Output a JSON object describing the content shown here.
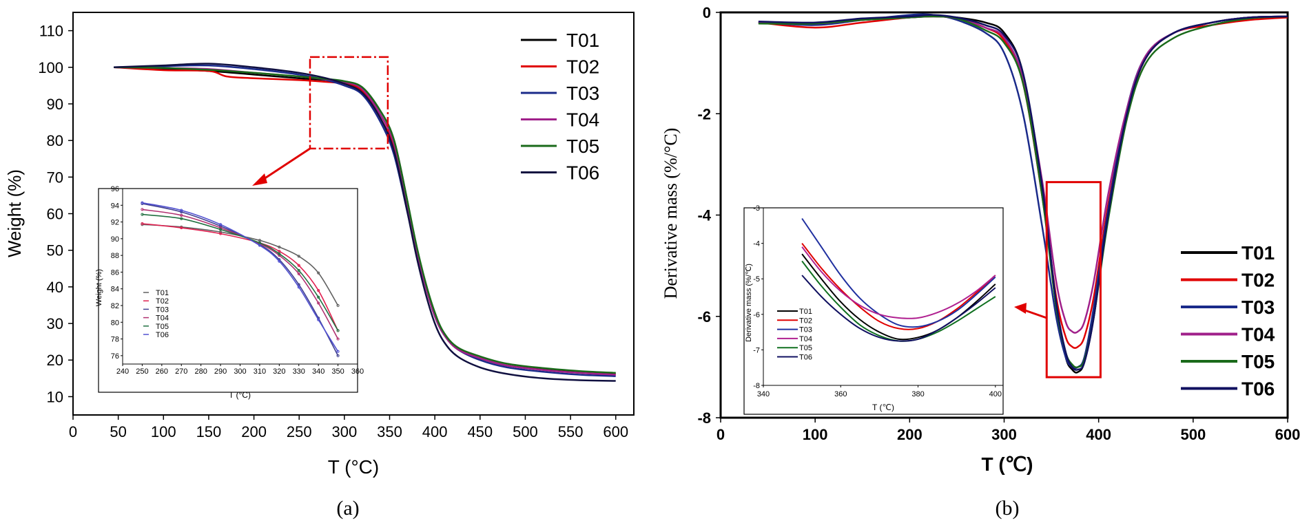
{
  "chart_data": [
    {
      "id": "a",
      "type": "line",
      "panel_label": "(a)",
      "xlabel": "T (°C)",
      "ylabel": "Weight (%)",
      "xlim": [
        0,
        620
      ],
      "ylim": [
        5,
        115
      ],
      "xticks": [
        0,
        50,
        100,
        150,
        200,
        250,
        300,
        350,
        400,
        450,
        500,
        550,
        600
      ],
      "yticks": [
        10,
        20,
        30,
        40,
        50,
        60,
        70,
        80,
        90,
        100,
        110
      ],
      "legend_position": "top-right",
      "series": [
        {
          "name": "T01",
          "color": "#000000",
          "x": [
            45,
            100,
            150,
            200,
            250,
            280,
            300,
            320,
            340,
            355,
            370,
            380,
            390,
            400,
            410,
            425,
            450,
            480,
            520,
            560,
            600
          ],
          "y": [
            100,
            99.5,
            99,
            98,
            97,
            96.5,
            95.8,
            94,
            88,
            80,
            63,
            50,
            40,
            32,
            27,
            23,
            20.5,
            18.5,
            17.5,
            16.8,
            16.3
          ]
        },
        {
          "name": "T02",
          "color": "#e00000",
          "x": [
            45,
            100,
            150,
            170,
            200,
            250,
            280,
            300,
            320,
            340,
            355,
            370,
            380,
            390,
            400,
            410,
            425,
            450,
            480,
            520,
            560,
            600
          ],
          "y": [
            100,
            99.2,
            99,
            97.5,
            97,
            96.5,
            96,
            95.5,
            93.5,
            86,
            78,
            62,
            50,
            40,
            32,
            27,
            23,
            20.5,
            18.5,
            17.3,
            16.5,
            16
          ]
        },
        {
          "name": "T03",
          "color": "#1a2a8a",
          "x": [
            45,
            100,
            150,
            200,
            250,
            280,
            300,
            320,
            340,
            355,
            370,
            380,
            390,
            400,
            410,
            425,
            450,
            480,
            520,
            560,
            600
          ],
          "y": [
            100,
            100.3,
            100.5,
            99.5,
            98,
            96.5,
            95,
            92.5,
            85,
            76,
            60,
            49,
            40,
            32,
            27,
            23,
            20,
            18,
            16.8,
            16,
            15.6
          ]
        },
        {
          "name": "T04",
          "color": "#a0208a",
          "x": [
            45,
            100,
            150,
            200,
            250,
            280,
            300,
            320,
            340,
            355,
            370,
            380,
            390,
            400,
            410,
            425,
            450,
            480,
            520,
            560,
            600
          ],
          "y": [
            100,
            99.8,
            99.5,
            98.5,
            97.5,
            96.7,
            96,
            94,
            87,
            79,
            62,
            50,
            40,
            32,
            27,
            23,
            20.5,
            18.5,
            17.3,
            16.5,
            16
          ]
        },
        {
          "name": "T05",
          "color": "#1a6a1a",
          "x": [
            45,
            100,
            150,
            200,
            250,
            280,
            300,
            320,
            340,
            355,
            370,
            380,
            390,
            400,
            410,
            425,
            450,
            480,
            520,
            560,
            600
          ],
          "y": [
            100,
            99.8,
            99.3,
            98.5,
            97.5,
            96.8,
            96.2,
            94.5,
            88,
            80,
            63,
            51,
            41,
            33,
            27.5,
            23.5,
            21,
            19,
            17.8,
            17,
            16.5
          ]
        },
        {
          "name": "T06",
          "color": "#101040",
          "x": [
            45,
            100,
            150,
            200,
            250,
            280,
            300,
            320,
            340,
            355,
            370,
            380,
            390,
            400,
            410,
            425,
            450,
            480,
            520,
            560,
            600
          ],
          "y": [
            100,
            100.5,
            101,
            100,
            98.5,
            97,
            95.5,
            93,
            86,
            77,
            60,
            48,
            38,
            30,
            25,
            21,
            18,
            16.2,
            15,
            14.5,
            14.3
          ]
        }
      ],
      "inset": {
        "xlabel": "T (°C)",
        "ylabel": "Weight (%)",
        "xlim": [
          240,
          360
        ],
        "ylim": [
          75,
          96
        ],
        "xticks": [
          240,
          250,
          260,
          270,
          280,
          290,
          300,
          310,
          320,
          330,
          340,
          350,
          360
        ],
        "yticks": [
          76,
          78,
          80,
          82,
          84,
          86,
          88,
          90,
          92,
          94,
          96
        ],
        "legend_position": "bottom-left",
        "series": [
          {
            "name": "T01",
            "color": "#606060",
            "marker": "+",
            "x": [
              250,
              270,
              290,
              310,
              320,
              330,
              340,
              350
            ],
            "y": [
              91.7,
              91.4,
              90.8,
              89.8,
              89.0,
              87.9,
              85.9,
              82.0
            ]
          },
          {
            "name": "T02",
            "color": "#e02050",
            "marker": "o",
            "x": [
              250,
              270,
              290,
              310,
              320,
              330,
              340,
              350
            ],
            "y": [
              91.8,
              91.3,
              90.6,
              89.5,
              88.5,
              86.8,
              83.8,
              79.0
            ]
          },
          {
            "name": "T03",
            "color": "#404090",
            "marker": "^",
            "x": [
              250,
              270,
              290,
              310,
              320,
              330,
              340,
              350
            ],
            "y": [
              94.2,
              93.2,
              91.5,
              89.3,
              87.5,
              84.5,
              80.5,
              76.0
            ]
          },
          {
            "name": "T04",
            "color": "#b03070",
            "marker": "v",
            "x": [
              250,
              270,
              290,
              310,
              320,
              330,
              340,
              350
            ],
            "y": [
              93.5,
              92.8,
              91.3,
              89.4,
              88.0,
              85.8,
              82.3,
              78.0
            ]
          },
          {
            "name": "T05",
            "color": "#207040",
            "marker": "d",
            "x": [
              250,
              270,
              290,
              310,
              320,
              330,
              340,
              350
            ],
            "y": [
              92.9,
              92.4,
              91.1,
              89.5,
              88.2,
              86.2,
              83.0,
              79.0
            ]
          },
          {
            "name": "T06",
            "color": "#5050d0",
            "marker": "o",
            "x": [
              250,
              270,
              290,
              310,
              320,
              330,
              340,
              350
            ],
            "y": [
              94.3,
              93.4,
              91.7,
              89.2,
              87.3,
              84.2,
              80.3,
              76.5
            ]
          }
        ]
      }
    },
    {
      "id": "b",
      "type": "line",
      "panel_label": "(b)",
      "xlabel": "T (℃)",
      "ylabel": "Derivative  mass (%/°C)",
      "xlim": [
        0,
        600
      ],
      "ylim": [
        -8,
        0
      ],
      "xticks": [
        0,
        100,
        200,
        300,
        400,
        500,
        600
      ],
      "yticks": [
        0,
        -2,
        -4,
        -6,
        -8
      ],
      "legend_position": "bottom-right",
      "series": [
        {
          "name": "T01",
          "color": "#000000",
          "x": [
            40,
            100,
            150,
            200,
            225,
            250,
            280,
            300,
            320,
            340,
            355,
            365,
            372,
            378,
            385,
            395,
            410,
            430,
            450,
            480,
            520,
            560,
            600
          ],
          "y": [
            -0.2,
            -0.22,
            -0.15,
            -0.1,
            -0.08,
            -0.1,
            -0.2,
            -0.4,
            -1.2,
            -3.5,
            -5.8,
            -6.8,
            -7.05,
            -7.1,
            -6.9,
            -6.0,
            -4.0,
            -2.0,
            -0.9,
            -0.4,
            -0.2,
            -0.1,
            -0.08
          ]
        },
        {
          "name": "T02",
          "color": "#e00000",
          "x": [
            40,
            100,
            150,
            200,
            225,
            250,
            280,
            300,
            320,
            340,
            355,
            365,
            372,
            378,
            385,
            395,
            410,
            430,
            450,
            480,
            520,
            560,
            600
          ],
          "y": [
            -0.2,
            -0.3,
            -0.2,
            -0.1,
            -0.08,
            -0.12,
            -0.3,
            -0.55,
            -1.4,
            -3.6,
            -5.6,
            -6.4,
            -6.6,
            -6.6,
            -6.4,
            -5.6,
            -3.8,
            -2.0,
            -0.9,
            -0.4,
            -0.25,
            -0.15,
            -0.1
          ]
        },
        {
          "name": "T03",
          "color": "#1a2a8a",
          "x": [
            40,
            100,
            150,
            200,
            225,
            250,
            280,
            300,
            320,
            340,
            355,
            365,
            372,
            378,
            385,
            395,
            410,
            430,
            450,
            480,
            520,
            560,
            600
          ],
          "y": [
            -0.2,
            -0.25,
            -0.15,
            -0.05,
            -0.05,
            -0.15,
            -0.4,
            -0.8,
            -2.0,
            -4.2,
            -6.0,
            -6.8,
            -7.0,
            -7.0,
            -6.8,
            -5.8,
            -3.9,
            -1.9,
            -0.85,
            -0.4,
            -0.2,
            -0.1,
            -0.08
          ]
        },
        {
          "name": "T04",
          "color": "#a0208a",
          "x": [
            40,
            100,
            150,
            200,
            225,
            250,
            280,
            300,
            320,
            340,
            355,
            365,
            372,
            378,
            385,
            395,
            410,
            430,
            450,
            480,
            520,
            560,
            600
          ],
          "y": [
            -0.2,
            -0.22,
            -0.15,
            -0.1,
            -0.08,
            -0.12,
            -0.3,
            -0.5,
            -1.3,
            -3.3,
            -5.3,
            -6.1,
            -6.3,
            -6.3,
            -6.1,
            -5.3,
            -3.6,
            -1.9,
            -0.85,
            -0.4,
            -0.2,
            -0.1,
            -0.08
          ]
        },
        {
          "name": "T05",
          "color": "#1a6a1a",
          "x": [
            40,
            100,
            150,
            200,
            225,
            250,
            280,
            300,
            320,
            340,
            355,
            365,
            372,
            378,
            385,
            395,
            410,
            430,
            450,
            480,
            520,
            560,
            600
          ],
          "y": [
            -0.22,
            -0.22,
            -0.15,
            -0.1,
            -0.08,
            -0.12,
            -0.35,
            -0.6,
            -1.4,
            -3.6,
            -5.8,
            -6.7,
            -6.95,
            -7.0,
            -6.85,
            -6.0,
            -4.1,
            -2.1,
            -1.0,
            -0.5,
            -0.25,
            -0.12,
            -0.08
          ]
        },
        {
          "name": "T06",
          "color": "#101060",
          "x": [
            40,
            100,
            150,
            200,
            225,
            250,
            280,
            300,
            320,
            340,
            355,
            365,
            372,
            378,
            385,
            395,
            410,
            430,
            450,
            480,
            520,
            560,
            600
          ],
          "y": [
            -0.18,
            -0.2,
            -0.12,
            -0.08,
            -0.05,
            -0.1,
            -0.25,
            -0.45,
            -1.2,
            -3.4,
            -5.7,
            -6.7,
            -7.0,
            -7.05,
            -6.9,
            -6.0,
            -4.0,
            -2.0,
            -0.9,
            -0.4,
            -0.2,
            -0.1,
            -0.08
          ]
        }
      ],
      "inset": {
        "xlabel": "T (℃)",
        "ylabel": "Derivative  mass (%/℃)",
        "xlim": [
          340,
          402
        ],
        "ylim": [
          -8,
          -3
        ],
        "xticks": [
          340,
          360,
          380,
          400
        ],
        "yticks": [
          -3,
          -4,
          -5,
          -6,
          -7,
          -8
        ],
        "legend_position": "bottom-left",
        "series": [
          {
            "name": "T01",
            "color": "#000000",
            "x": [
              350,
              355,
              360,
              365,
              370,
              375,
              380,
              385,
              390,
              395,
              400
            ],
            "y": [
              -4.3,
              -5.0,
              -5.65,
              -6.15,
              -6.5,
              -6.7,
              -6.65,
              -6.45,
              -6.1,
              -5.65,
              -5.15
            ]
          },
          {
            "name": "T02",
            "color": "#e00000",
            "x": [
              350,
              355,
              360,
              365,
              370,
              375,
              380,
              385,
              390,
              395,
              400
            ],
            "y": [
              -4.0,
              -4.7,
              -5.3,
              -5.8,
              -6.2,
              -6.4,
              -6.4,
              -6.2,
              -5.85,
              -5.4,
              -4.9
            ]
          },
          {
            "name": "T03",
            "color": "#2030a0",
            "x": [
              350,
              355,
              360,
              365,
              370,
              375,
              380,
              385,
              390,
              395,
              400
            ],
            "y": [
              -3.3,
              -4.1,
              -4.9,
              -5.55,
              -6.0,
              -6.3,
              -6.35,
              -6.2,
              -5.9,
              -5.45,
              -4.95
            ]
          },
          {
            "name": "T04",
            "color": "#b02090",
            "x": [
              350,
              355,
              360,
              365,
              370,
              375,
              380,
              385,
              390,
              395,
              400
            ],
            "y": [
              -4.1,
              -4.8,
              -5.35,
              -5.75,
              -6.0,
              -6.1,
              -6.1,
              -5.95,
              -5.7,
              -5.35,
              -4.9
            ]
          },
          {
            "name": "T05",
            "color": "#107020",
            "x": [
              350,
              355,
              360,
              365,
              370,
              375,
              380,
              385,
              390,
              395,
              400
            ],
            "y": [
              -4.5,
              -5.2,
              -5.8,
              -6.3,
              -6.6,
              -6.75,
              -6.7,
              -6.5,
              -6.2,
              -5.85,
              -5.5
            ]
          },
          {
            "name": "T06",
            "color": "#101060",
            "x": [
              350,
              355,
              360,
              365,
              370,
              375,
              380,
              385,
              390,
              395,
              400
            ],
            "y": [
              -4.9,
              -5.5,
              -6.0,
              -6.4,
              -6.65,
              -6.75,
              -6.7,
              -6.45,
              -6.1,
              -5.7,
              -5.25
            ]
          }
        ]
      }
    }
  ]
}
